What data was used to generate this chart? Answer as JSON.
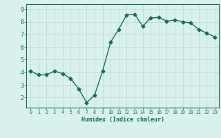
{
  "x": [
    0,
    1,
    2,
    3,
    4,
    5,
    6,
    7,
    8,
    9,
    10,
    11,
    12,
    13,
    14,
    15,
    16,
    17,
    18,
    19,
    20,
    21,
    22,
    23
  ],
  "y": [
    4.1,
    3.8,
    3.8,
    4.1,
    3.9,
    3.5,
    2.7,
    1.6,
    2.2,
    4.1,
    6.4,
    7.4,
    8.55,
    8.6,
    7.65,
    8.3,
    8.35,
    8.05,
    8.15,
    8.0,
    7.9,
    7.4,
    7.1,
    6.8
  ],
  "line_color": "#1a6b5a",
  "marker": "D",
  "markersize": 2.5,
  "linewidth": 1.0,
  "bg_color": "#d8f0ee",
  "grid_color": "#b8d8d4",
  "xlabel": "Humidex (Indice chaleur)",
  "xlabel_color": "#1a6b5a",
  "tick_color": "#1a6b5a",
  "axis_color": "#1a6b5a",
  "xlim": [
    -0.5,
    23.5
  ],
  "ylim": [
    1.2,
    9.4
  ],
  "xticks": [
    0,
    1,
    2,
    3,
    4,
    5,
    6,
    7,
    8,
    9,
    10,
    11,
    12,
    13,
    14,
    15,
    16,
    17,
    18,
    19,
    20,
    21,
    22,
    23
  ],
  "yticks": [
    2,
    3,
    4,
    5,
    6,
    7,
    8,
    9
  ],
  "xlabel_fontsize": 6.0,
  "xtick_fontsize": 4.8,
  "ytick_fontsize": 6.0
}
